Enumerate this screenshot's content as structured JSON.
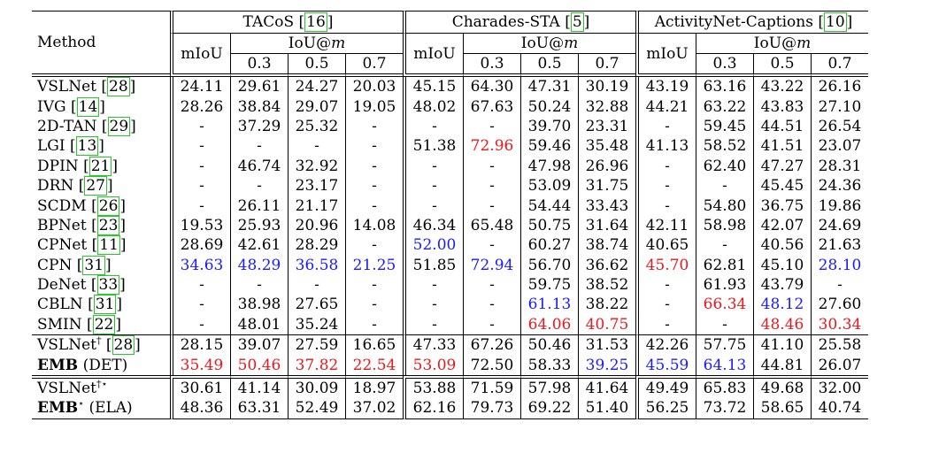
{
  "header": {
    "method": "Method",
    "datasets": [
      {
        "name": "TACoS",
        "ref": "16"
      },
      {
        "name": "Charades-STA",
        "ref": "5"
      },
      {
        "name": "ActivityNet-Captions",
        "ref": "10"
      }
    ],
    "miou": "mIoU",
    "iou_prefix": "IoU@",
    "iou_var": "m",
    "thresholds": [
      "0.3",
      "0.5",
      "0.7"
    ]
  },
  "rows": [
    {
      "name": "VSLNet",
      "ref": "28",
      "cells": [
        [
          "24.11",
          ""
        ],
        [
          "29.61",
          ""
        ],
        [
          "24.27",
          ""
        ],
        [
          "20.03",
          ""
        ],
        [
          "45.15",
          ""
        ],
        [
          "64.30",
          ""
        ],
        [
          "47.31",
          ""
        ],
        [
          "30.19",
          ""
        ],
        [
          "43.19",
          ""
        ],
        [
          "63.16",
          ""
        ],
        [
          "43.22",
          ""
        ],
        [
          "26.16",
          ""
        ]
      ]
    },
    {
      "name": "IVG",
      "ref": "14",
      "cells": [
        [
          "28.26",
          ""
        ],
        [
          "38.84",
          ""
        ],
        [
          "29.07",
          ""
        ],
        [
          "19.05",
          ""
        ],
        [
          "48.02",
          ""
        ],
        [
          "67.63",
          ""
        ],
        [
          "50.24",
          ""
        ],
        [
          "32.88",
          ""
        ],
        [
          "44.21",
          ""
        ],
        [
          "63.22",
          ""
        ],
        [
          "43.83",
          ""
        ],
        [
          "27.10",
          ""
        ]
      ]
    },
    {
      "name": "2D-TAN",
      "ref": "29",
      "cells": [
        [
          "-",
          ""
        ],
        [
          "37.29",
          ""
        ],
        [
          "25.32",
          ""
        ],
        [
          "-",
          ""
        ],
        [
          "-",
          ""
        ],
        [
          "-",
          ""
        ],
        [
          "39.70",
          ""
        ],
        [
          "23.31",
          ""
        ],
        [
          "-",
          ""
        ],
        [
          "59.45",
          ""
        ],
        [
          "44.51",
          ""
        ],
        [
          "26.54",
          ""
        ]
      ]
    },
    {
      "name": "LGI",
      "ref": "13",
      "cells": [
        [
          "-",
          ""
        ],
        [
          "-",
          ""
        ],
        [
          "-",
          ""
        ],
        [
          "-",
          ""
        ],
        [
          "51.38",
          ""
        ],
        [
          "72.96",
          "red"
        ],
        [
          "59.46",
          ""
        ],
        [
          "35.48",
          ""
        ],
        [
          "41.13",
          ""
        ],
        [
          "58.52",
          ""
        ],
        [
          "41.51",
          ""
        ],
        [
          "23.07",
          ""
        ]
      ]
    },
    {
      "name": "DPIN",
      "ref": "21",
      "cells": [
        [
          "-",
          ""
        ],
        [
          "46.74",
          ""
        ],
        [
          "32.92",
          ""
        ],
        [
          "-",
          ""
        ],
        [
          "-",
          ""
        ],
        [
          "-",
          ""
        ],
        [
          "47.98",
          ""
        ],
        [
          "26.96",
          ""
        ],
        [
          "-",
          ""
        ],
        [
          "62.40",
          ""
        ],
        [
          "47.27",
          ""
        ],
        [
          "28.31",
          ""
        ]
      ]
    },
    {
      "name": "DRN",
      "ref": "27",
      "cells": [
        [
          "-",
          ""
        ],
        [
          "-",
          ""
        ],
        [
          "23.17",
          ""
        ],
        [
          "-",
          ""
        ],
        [
          "-",
          ""
        ],
        [
          "-",
          ""
        ],
        [
          "53.09",
          ""
        ],
        [
          "31.75",
          ""
        ],
        [
          "-",
          ""
        ],
        [
          "-",
          ""
        ],
        [
          "45.45",
          ""
        ],
        [
          "24.36",
          ""
        ]
      ]
    },
    {
      "name": "SCDM",
      "ref": "26",
      "cells": [
        [
          "-",
          ""
        ],
        [
          "26.11",
          ""
        ],
        [
          "21.17",
          ""
        ],
        [
          "-",
          ""
        ],
        [
          "-",
          ""
        ],
        [
          "-",
          ""
        ],
        [
          "54.44",
          ""
        ],
        [
          "33.43",
          ""
        ],
        [
          "-",
          ""
        ],
        [
          "54.80",
          ""
        ],
        [
          "36.75",
          ""
        ],
        [
          "19.86",
          ""
        ]
      ]
    },
    {
      "name": "BPNet",
      "ref": "23",
      "cells": [
        [
          "19.53",
          ""
        ],
        [
          "25.93",
          ""
        ],
        [
          "20.96",
          ""
        ],
        [
          "14.08",
          ""
        ],
        [
          "46.34",
          ""
        ],
        [
          "65.48",
          ""
        ],
        [
          "50.75",
          ""
        ],
        [
          "31.64",
          ""
        ],
        [
          "42.11",
          ""
        ],
        [
          "58.98",
          ""
        ],
        [
          "42.07",
          ""
        ],
        [
          "24.69",
          ""
        ]
      ]
    },
    {
      "name": "CPNet",
      "ref": "11",
      "cells": [
        [
          "28.69",
          ""
        ],
        [
          "42.61",
          ""
        ],
        [
          "28.29",
          ""
        ],
        [
          "-",
          ""
        ],
        [
          "52.00",
          "blue"
        ],
        [
          "-",
          ""
        ],
        [
          "60.27",
          ""
        ],
        [
          "38.74",
          ""
        ],
        [
          "40.65",
          ""
        ],
        [
          "-",
          ""
        ],
        [
          "40.56",
          ""
        ],
        [
          "21.63",
          ""
        ]
      ]
    },
    {
      "name": "CPN",
      "ref": "31",
      "cells": [
        [
          "34.63",
          "blue"
        ],
        [
          "48.29",
          "blue"
        ],
        [
          "36.58",
          "blue"
        ],
        [
          "21.25",
          "blue"
        ],
        [
          "51.85",
          ""
        ],
        [
          "72.94",
          "blue"
        ],
        [
          "56.70",
          ""
        ],
        [
          "36.62",
          ""
        ],
        [
          "45.70",
          "red"
        ],
        [
          "62.81",
          ""
        ],
        [
          "45.10",
          ""
        ],
        [
          "28.10",
          "blue"
        ]
      ]
    },
    {
      "name": "DeNet",
      "ref": "33",
      "cells": [
        [
          "-",
          ""
        ],
        [
          "-",
          ""
        ],
        [
          "-",
          ""
        ],
        [
          "-",
          ""
        ],
        [
          "-",
          ""
        ],
        [
          "-",
          ""
        ],
        [
          "59.75",
          ""
        ],
        [
          "38.52",
          ""
        ],
        [
          "-",
          ""
        ],
        [
          "61.93",
          ""
        ],
        [
          "43.79",
          ""
        ],
        [
          "-",
          ""
        ]
      ]
    },
    {
      "name": "CBLN",
      "ref": "31",
      "cells": [
        [
          "-",
          ""
        ],
        [
          "38.98",
          ""
        ],
        [
          "27.65",
          ""
        ],
        [
          "-",
          ""
        ],
        [
          "-",
          ""
        ],
        [
          "-",
          ""
        ],
        [
          "61.13",
          "blue"
        ],
        [
          "38.22",
          ""
        ],
        [
          "-",
          ""
        ],
        [
          "66.34",
          "red"
        ],
        [
          "48.12",
          "blue"
        ],
        [
          "27.60",
          ""
        ]
      ]
    },
    {
      "name": "SMIN",
      "ref": "22",
      "cells": [
        [
          "-",
          ""
        ],
        [
          "48.01",
          ""
        ],
        [
          "35.24",
          ""
        ],
        [
          "-",
          ""
        ],
        [
          "-",
          ""
        ],
        [
          "-",
          ""
        ],
        [
          "64.06",
          "red"
        ],
        [
          "40.75",
          "red"
        ],
        [
          "-",
          ""
        ],
        [
          "-",
          ""
        ],
        [
          "48.46",
          "red"
        ],
        [
          "30.34",
          "red"
        ]
      ]
    }
  ],
  "rows2": [
    {
      "name": "VSLNet",
      "sup": "†",
      "ref": "28",
      "suffix": "",
      "bold": false,
      "cells": [
        [
          "28.15",
          ""
        ],
        [
          "39.07",
          ""
        ],
        [
          "27.59",
          ""
        ],
        [
          "16.65",
          ""
        ],
        [
          "47.33",
          ""
        ],
        [
          "67.26",
          ""
        ],
        [
          "50.46",
          ""
        ],
        [
          "31.53",
          ""
        ],
        [
          "42.26",
          ""
        ],
        [
          "57.75",
          ""
        ],
        [
          "41.10",
          ""
        ],
        [
          "25.58",
          ""
        ]
      ]
    },
    {
      "name": "EMB",
      "sup": "",
      "ref": "",
      "suffix": "(DET)",
      "bold": true,
      "cells": [
        [
          "35.49",
          "red"
        ],
        [
          "50.46",
          "red"
        ],
        [
          "37.82",
          "red"
        ],
        [
          "22.54",
          "red"
        ],
        [
          "53.09",
          "red"
        ],
        [
          "72.50",
          ""
        ],
        [
          "58.33",
          ""
        ],
        [
          "39.25",
          "blue"
        ],
        [
          "45.59",
          "blue"
        ],
        [
          "64.13",
          "blue"
        ],
        [
          "44.81",
          ""
        ],
        [
          "26.07",
          ""
        ]
      ]
    }
  ],
  "rows3": [
    {
      "name": "VSLNet",
      "sup": "†⋆",
      "ref": "",
      "suffix": "",
      "bold": false,
      "cells": [
        [
          "30.61",
          ""
        ],
        [
          "41.14",
          ""
        ],
        [
          "30.09",
          ""
        ],
        [
          "18.97",
          ""
        ],
        [
          "53.88",
          ""
        ],
        [
          "71.59",
          ""
        ],
        [
          "57.98",
          ""
        ],
        [
          "41.64",
          ""
        ],
        [
          "49.49",
          ""
        ],
        [
          "65.83",
          ""
        ],
        [
          "49.68",
          ""
        ],
        [
          "32.00",
          ""
        ]
      ]
    },
    {
      "name": "EMB",
      "sup": "⋆",
      "ref": "",
      "suffix": "(ELA)",
      "bold": true,
      "cells": [
        [
          "48.36",
          ""
        ],
        [
          "63.31",
          ""
        ],
        [
          "52.49",
          ""
        ],
        [
          "37.02",
          ""
        ],
        [
          "62.16",
          ""
        ],
        [
          "79.73",
          ""
        ],
        [
          "69.22",
          ""
        ],
        [
          "51.40",
          ""
        ],
        [
          "56.25",
          ""
        ],
        [
          "73.72",
          ""
        ],
        [
          "58.65",
          ""
        ],
        [
          "40.74",
          ""
        ]
      ]
    }
  ],
  "colors": {
    "red": "#e8181c",
    "blue": "#1a1aff",
    "ref_box": "#22cc22"
  }
}
